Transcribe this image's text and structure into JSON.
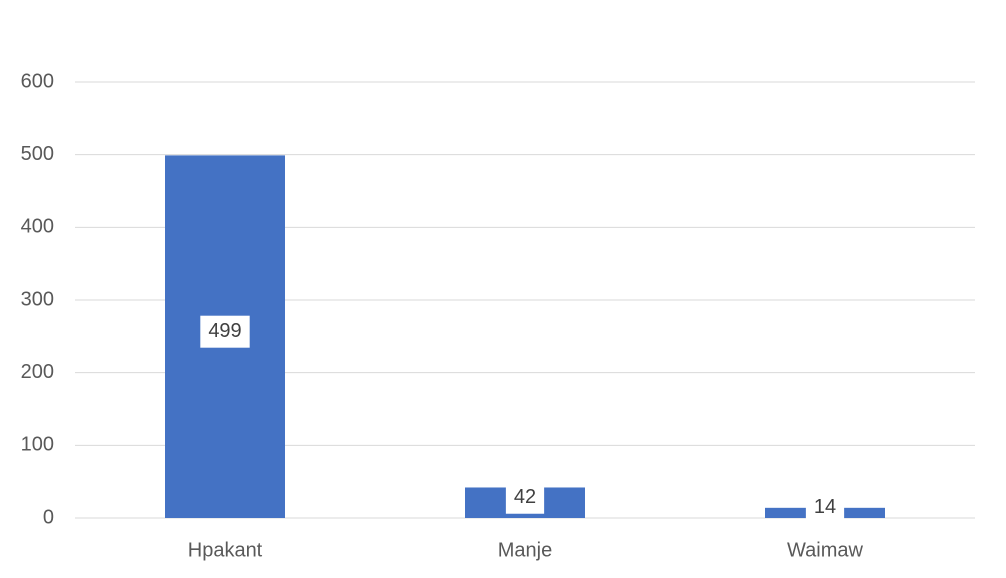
{
  "chart_data": {
    "type": "bar",
    "categories": [
      "Hpakant",
      "Manje",
      "Waimaw"
    ],
    "values": [
      499,
      42,
      14
    ],
    "color": "#4472c4",
    "ylim": [
      0,
      600
    ],
    "yticks": [
      0,
      100,
      200,
      300,
      400,
      500,
      600
    ],
    "grid": true,
    "data_labels": true
  }
}
